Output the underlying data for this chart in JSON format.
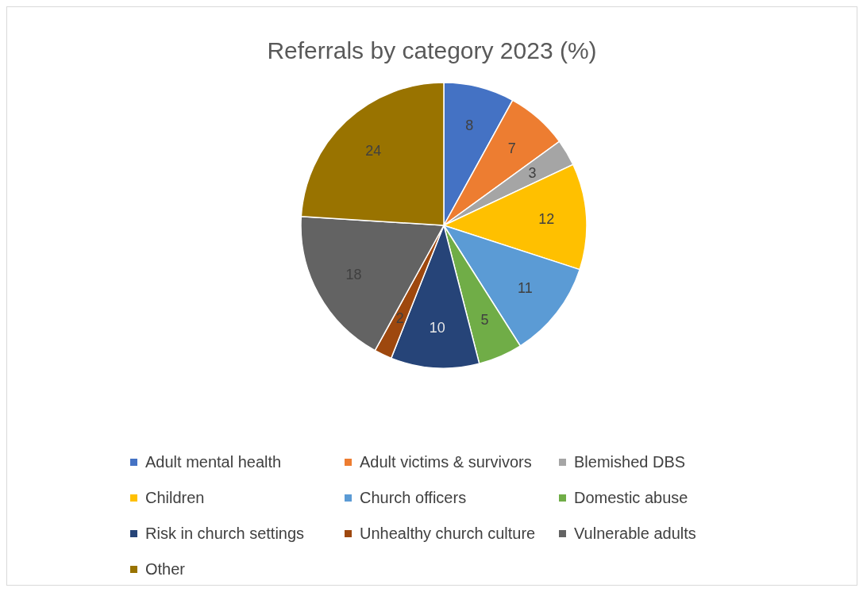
{
  "chart_data": {
    "type": "pie",
    "title": "Referrals by category 2023 (%)",
    "categories": [
      "Adult mental health",
      "Adult victims & survivors",
      "Blemished DBS",
      "Children",
      "Church officers",
      "Domestic abuse",
      "Risk in church settings",
      "Unhealthy church culture",
      "Vulnerable adults",
      "Other"
    ],
    "values": [
      8,
      7,
      3,
      12,
      11,
      5,
      10,
      2,
      18,
      24
    ],
    "colors": [
      "#4472c4",
      "#ed7d31",
      "#a5a5a5",
      "#ffc000",
      "#5b9bd5",
      "#70ad47",
      "#264478",
      "#9e480e",
      "#636363",
      "#997300"
    ],
    "data_labels": true,
    "legend": "bottom"
  }
}
